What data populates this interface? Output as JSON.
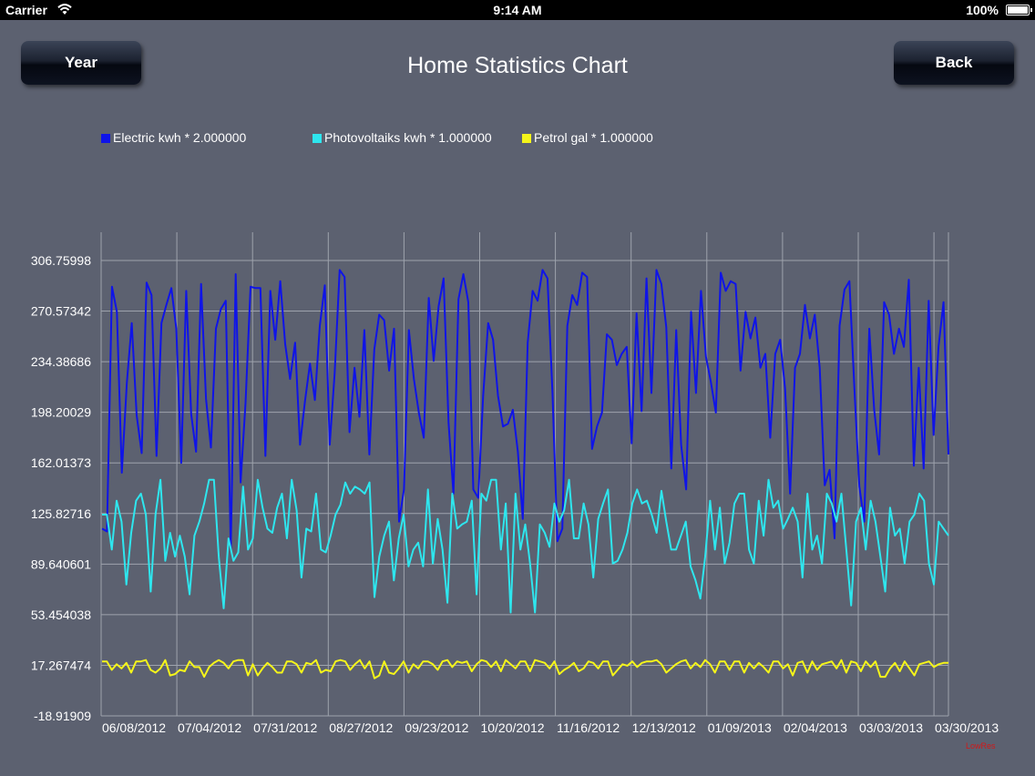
{
  "status_bar": {
    "carrier": "Carrier",
    "time": "9:14 AM",
    "battery": "100%"
  },
  "header": {
    "title": "Home Statistics Chart",
    "left_button": "Year",
    "right_button": "Back"
  },
  "watermark": "LowRes",
  "colors": {
    "background": "#5c6170",
    "grid": "#9ea3ad",
    "text": "#ffffff"
  },
  "chart_data": {
    "type": "line",
    "title": "Home Statistics Chart",
    "xlabel": "",
    "ylabel": "",
    "ylim": [
      -18.91909,
      306.75998
    ],
    "grid": true,
    "legend_position": "top-left",
    "y_ticks": [
      "306.75998",
      "270.57342",
      "234.38686",
      "198.20029",
      "162.01373",
      "125.82716",
      "89.640601",
      "53.454038",
      "17.267474",
      "-18.91909"
    ],
    "y_tick_values": [
      306.75998,
      270.57342,
      234.38686,
      198.20029,
      162.01373,
      125.82716,
      89.640601,
      53.454038,
      17.267474,
      -18.91909
    ],
    "x_ticks": [
      "06/08/2012",
      "07/04/2012",
      "07/31/2012",
      "08/27/2012",
      "09/23/2012",
      "10/20/2012",
      "11/16/2012",
      "12/13/2012",
      "01/09/2013",
      "02/04/2013",
      "03/03/2013",
      "03/30/2013"
    ],
    "series": [
      {
        "name": "Electric kwh * 2.000000",
        "color": "#0f14e8",
        "values": [
          115,
          113,
          288,
          270,
          155,
          219,
          262,
          196,
          169,
          291,
          282,
          167,
          262,
          275,
          287,
          258,
          162,
          285,
          197,
          170,
          290,
          208,
          173,
          258,
          272,
          278,
          100,
          297,
          148,
          205,
          288,
          287,
          287,
          167,
          285,
          250,
          292,
          247,
          222,
          248,
          175,
          206,
          233,
          207,
          260,
          289,
          175,
          226,
          300,
          295,
          184,
          230,
          195,
          257,
          168,
          243,
          268,
          264,
          228,
          258,
          120,
          143,
          257,
          222,
          198,
          180,
          280,
          235,
          274,
          294,
          191,
          140,
          279,
          297,
          277,
          143,
          137,
          210,
          262,
          250,
          210,
          188,
          190,
          200,
          170,
          122,
          248,
          285,
          278,
          300,
          294,
          212,
          106,
          115,
          260,
          282,
          275,
          298,
          295,
          172,
          188,
          198,
          254,
          250,
          232,
          240,
          245,
          176,
          269,
          199,
          294,
          212,
          300,
          290,
          259,
          158,
          257,
          175,
          143,
          270,
          212,
          285,
          238,
          220,
          198,
          298,
          285,
          292,
          290,
          228,
          270,
          251,
          266,
          230,
          240,
          180,
          240,
          250,
          215,
          140,
          230,
          240,
          275,
          251,
          268,
          230,
          146,
          157,
          108,
          260,
          286,
          292,
          215,
          145,
          120,
          258,
          200,
          168,
          277,
          268,
          240,
          258,
          245,
          293,
          160,
          230,
          158,
          278,
          182,
          245,
          277,
          168
        ]
      },
      {
        "name": "Photovoltaiks kwh * 1.000000",
        "color": "#2ee6ee",
        "values": [
          125,
          125,
          100,
          135,
          120,
          75,
          112,
          135,
          140,
          125,
          70,
          125,
          150,
          92,
          112,
          95,
          110,
          95,
          68,
          110,
          120,
          133,
          150,
          150,
          95,
          58,
          108,
          92,
          98,
          145,
          100,
          108,
          150,
          130,
          115,
          112,
          130,
          140,
          108,
          150,
          128,
          80,
          115,
          113,
          140,
          100,
          98,
          110,
          125,
          132,
          148,
          140,
          145,
          143,
          140,
          148,
          66,
          95,
          110,
          120,
          78,
          108,
          125,
          88,
          100,
          105,
          88,
          143,
          90,
          122,
          100,
          62,
          140,
          115,
          118,
          120,
          135,
          68,
          140,
          135,
          150,
          150,
          100,
          133,
          55,
          140,
          100,
          118,
          90,
          55,
          118,
          112,
          102,
          133,
          120,
          128,
          150,
          108,
          108,
          133,
          118,
          80,
          122,
          133,
          143,
          90,
          92,
          100,
          112,
          133,
          143,
          133,
          135,
          125,
          112,
          142,
          120,
          100,
          100,
          110,
          120,
          88,
          78,
          65,
          95,
          135,
          100,
          130,
          90,
          105,
          133,
          140,
          140,
          100,
          90,
          135,
          110,
          150,
          130,
          135,
          115,
          122,
          130,
          120,
          80,
          140,
          100,
          110,
          90,
          140,
          133,
          120,
          140,
          100,
          60,
          120,
          130,
          100,
          135,
          120,
          95,
          70,
          130,
          110,
          115,
          90,
          120,
          125,
          140,
          135,
          90,
          75,
          120,
          115,
          110
        ]
      },
      {
        "name": "Petrol gal * 1.000000",
        "color": "#f5f51a",
        "values": [
          20,
          20,
          14,
          18,
          15,
          19,
          12,
          20,
          20,
          21,
          14,
          12,
          15,
          21,
          10,
          11,
          14,
          13,
          20,
          16,
          16,
          9,
          16,
          19,
          21,
          19,
          15,
          20,
          21,
          21,
          10,
          18,
          10,
          15,
          19,
          16,
          12,
          12,
          20,
          20,
          18,
          12,
          19,
          18,
          21,
          12,
          14,
          13,
          20,
          21,
          20,
          14,
          18,
          21,
          15,
          20,
          8,
          10,
          20,
          12,
          11,
          15,
          20,
          12,
          18,
          15,
          20,
          20,
          18,
          14,
          20,
          21,
          16,
          20,
          19,
          20,
          13,
          18,
          21,
          20,
          16,
          20,
          13,
          21,
          18,
          15,
          20,
          20,
          13,
          21,
          20,
          19,
          15,
          20,
          11,
          14,
          16,
          19,
          13,
          15,
          20,
          19,
          15,
          20,
          20,
          10,
          14,
          18,
          17,
          20,
          16,
          19,
          20,
          20,
          21,
          18,
          12,
          15,
          18,
          20,
          21,
          15,
          19,
          16,
          21,
          18,
          12,
          20,
          20,
          14,
          20,
          20,
          12,
          19,
          15,
          19,
          16,
          12,
          20,
          20,
          15,
          18,
          10,
          19,
          20,
          12,
          20,
          14,
          18,
          19,
          20,
          15,
          21,
          12,
          20,
          19,
          13,
          20,
          16,
          20,
          9,
          9,
          15,
          19,
          13,
          20,
          15,
          10,
          18,
          19,
          20,
          16,
          18,
          19,
          19
        ]
      }
    ]
  }
}
